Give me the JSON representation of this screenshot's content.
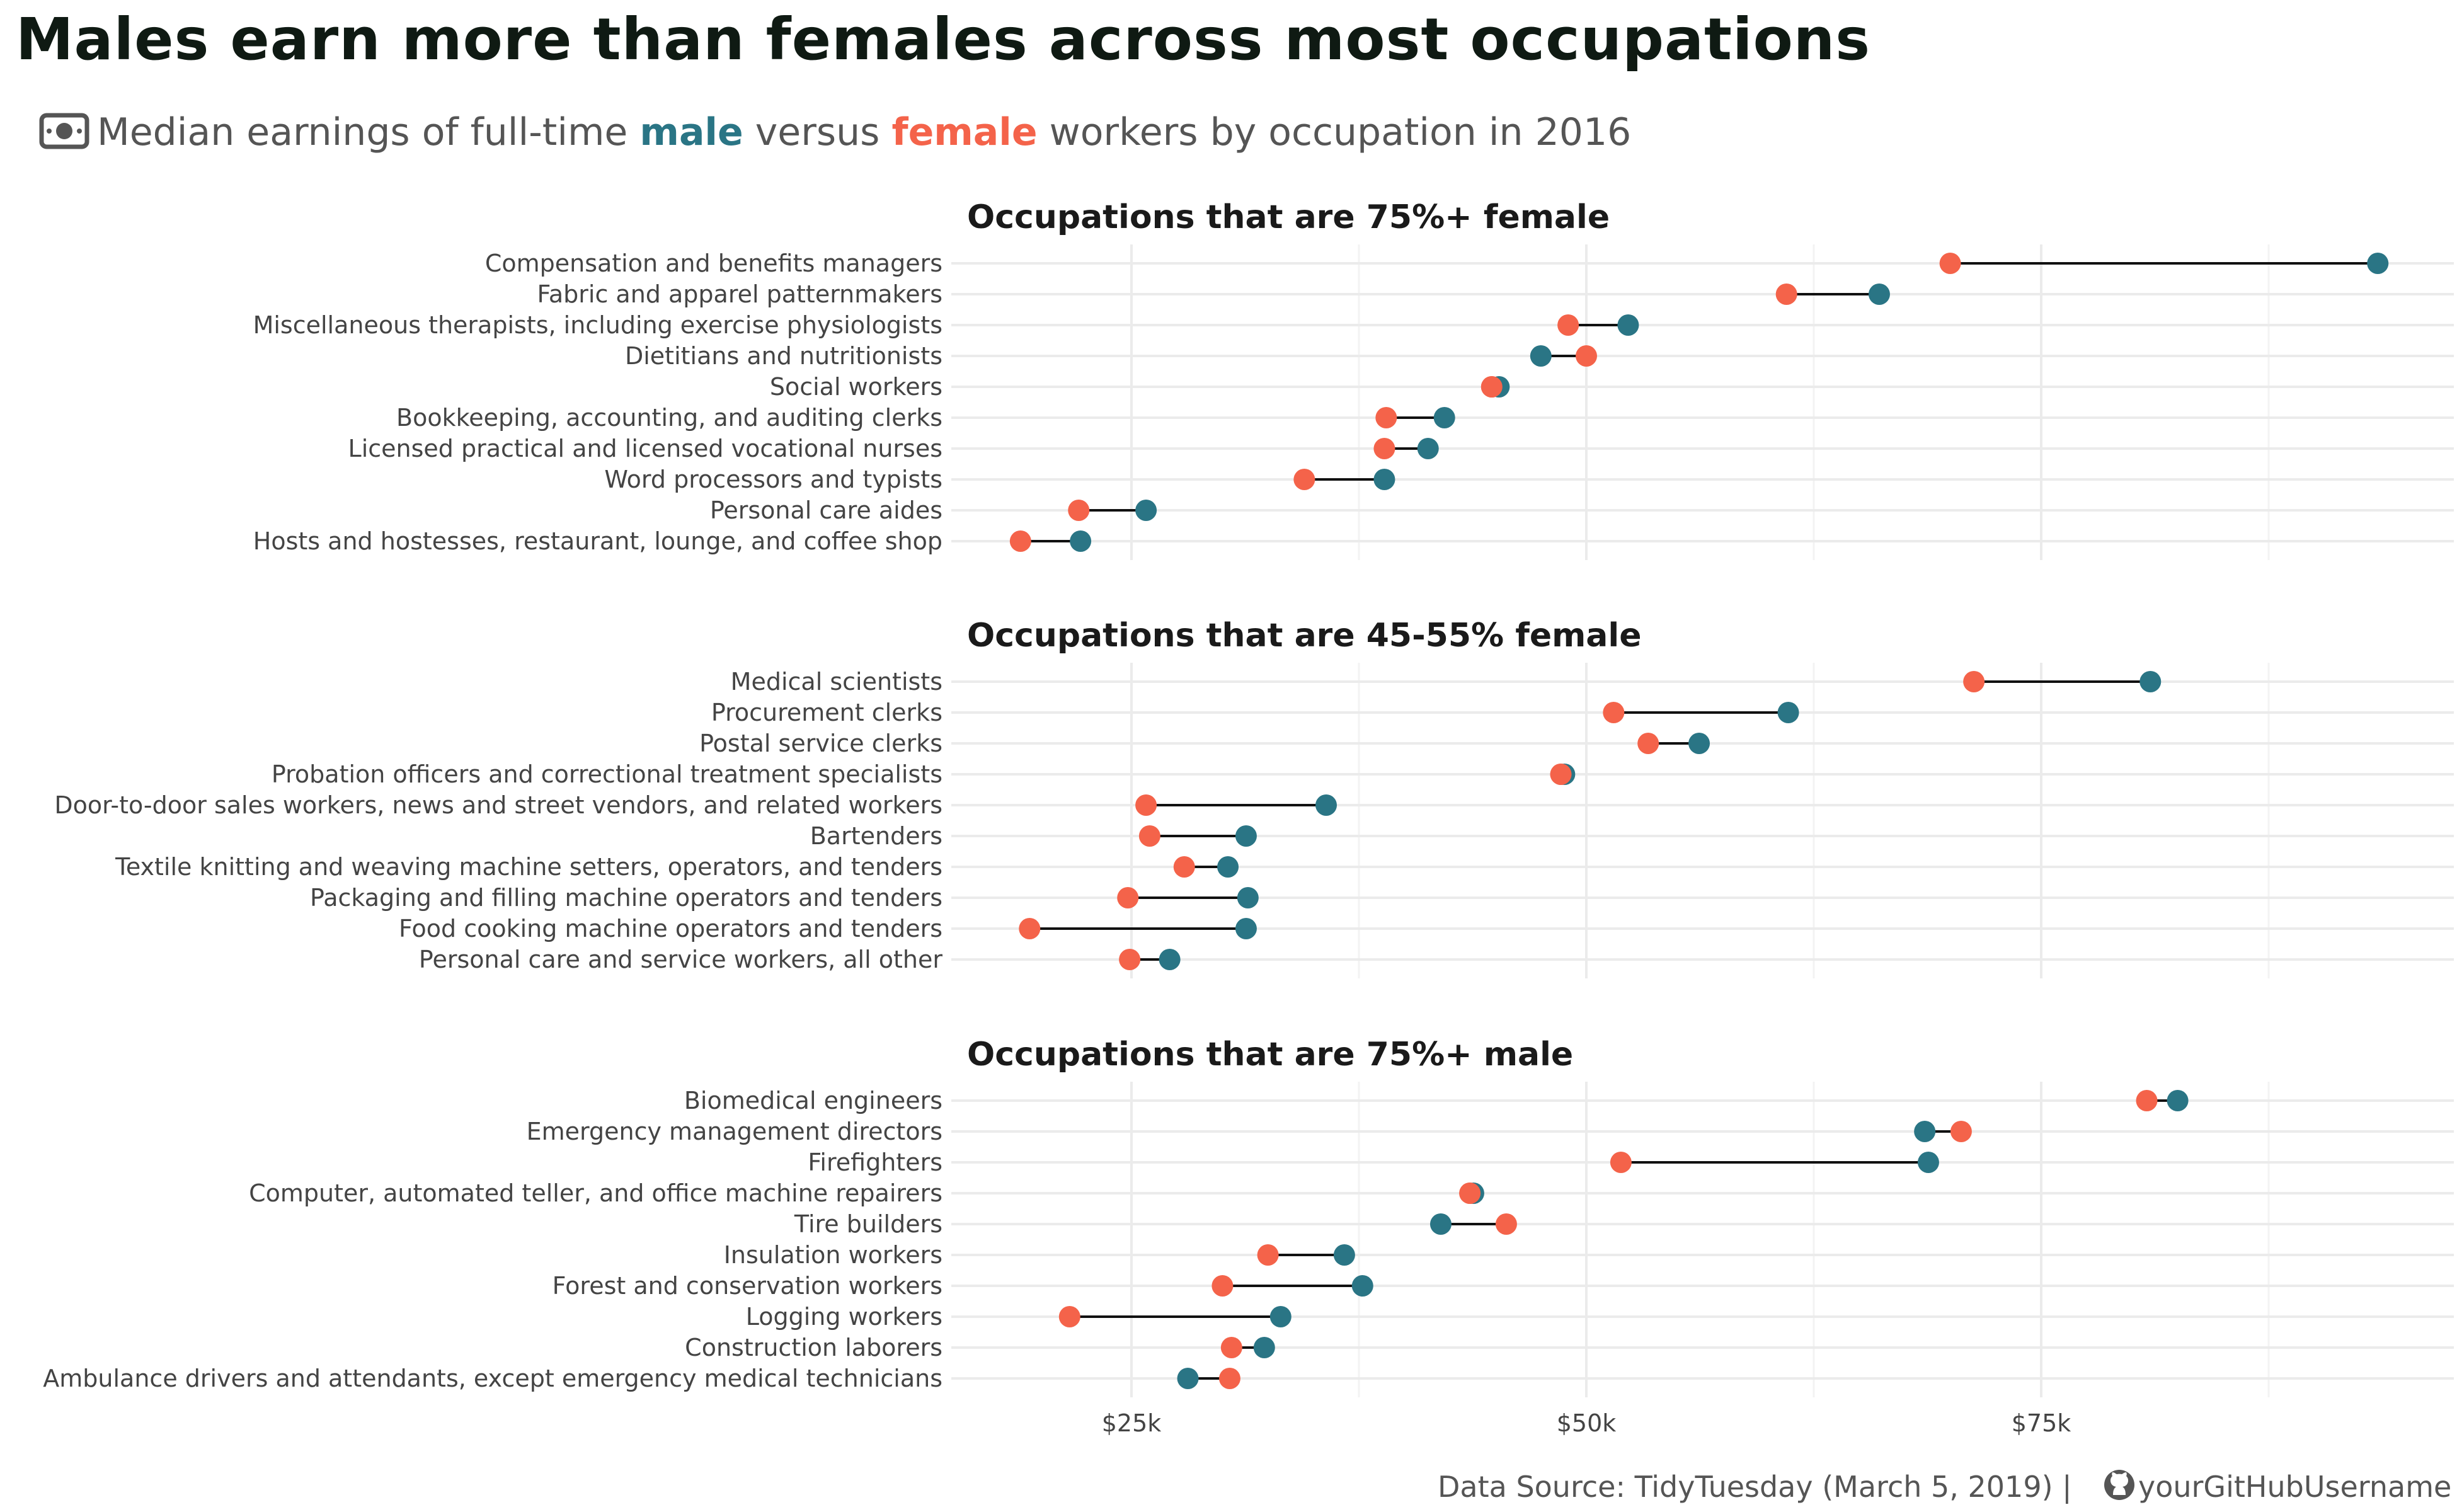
{
  "title": "Males earn more than females across most occupations",
  "subtitle": {
    "icon": "money-bill-icon",
    "prefix": "Median earnings of full-time ",
    "male": "male",
    "middle": " versus ",
    "female": "female",
    "suffix": " workers by occupation in 2016"
  },
  "caption": {
    "text": "Data Source: TidyTuesday (March 5, 2019) | ",
    "icon": "github-icon",
    "user": "yourGitHubUsername"
  },
  "colors": {
    "male": "#2a7585",
    "female": "#f4634a",
    "segment": "#111111",
    "grid": "#ebebeb",
    "title": "#0f1a13",
    "text": "#555555"
  },
  "chart_data": {
    "type": "dumbbell",
    "xlim": [
      16000,
      96000
    ],
    "x_ticks": [
      25000,
      50000,
      75000
    ],
    "x_tick_labels": [
      "$25k",
      "$50k",
      "$75k"
    ],
    "grid": true,
    "panels": [
      {
        "title": "Occupations that are 75%+ female",
        "rows": [
          {
            "occupation": "Compensation and benefits managers",
            "male": 93500,
            "female": 70000
          },
          {
            "occupation": "Fabric and apparel patternmakers",
            "male": 66100,
            "female": 61000
          },
          {
            "occupation": "Miscellaneous therapists, including exercise physiologists",
            "male": 52300,
            "female": 49000
          },
          {
            "occupation": "Dietitians and nutritionists",
            "male": 47500,
            "female": 50000
          },
          {
            "occupation": "Social workers",
            "male": 45200,
            "female": 44800
          },
          {
            "occupation": "Bookkeeping, accounting, and auditing clerks",
            "male": 42200,
            "female": 39000
          },
          {
            "occupation": "Licensed practical and licensed vocational nurses",
            "male": 41300,
            "female": 38900
          },
          {
            "occupation": "Word processors and typists",
            "male": 38900,
            "female": 34500
          },
          {
            "occupation": "Personal care aides",
            "male": 25800,
            "female": 22100
          },
          {
            "occupation": "Hosts and hostesses, restaurant, lounge, and coffee shop",
            "male": 22200,
            "female": 18900
          }
        ]
      },
      {
        "title": "Occupations that are 45-55% female",
        "rows": [
          {
            "occupation": "Medical scientists",
            "male": 81000,
            "female": 71300
          },
          {
            "occupation": "Procurement clerks",
            "male": 61100,
            "female": 51500
          },
          {
            "occupation": "Postal service clerks",
            "male": 56200,
            "female": 53400
          },
          {
            "occupation": "Probation officers and correctional treatment specialists",
            "male": 48800,
            "female": 48600
          },
          {
            "occupation": "Door-to-door sales workers, news and street vendors, and related workers",
            "male": 35700,
            "female": 25800
          },
          {
            "occupation": "Bartenders",
            "male": 31300,
            "female": 26000
          },
          {
            "occupation": "Textile knitting and weaving machine setters, operators, and tenders",
            "male": 30300,
            "female": 27900
          },
          {
            "occupation": "Packaging and filling machine operators and tenders",
            "male": 31400,
            "female": 24800
          },
          {
            "occupation": "Food cooking machine operators and tenders",
            "male": 31300,
            "female": 19400
          },
          {
            "occupation": "Personal care and service workers, all other",
            "male": 27100,
            "female": 24900
          }
        ]
      },
      {
        "title": "Occupations that are 75%+ male",
        "rows": [
          {
            "occupation": "Biomedical engineers",
            "male": 82500,
            "female": 80800
          },
          {
            "occupation": "Emergency management directors",
            "male": 68600,
            "female": 70600
          },
          {
            "occupation": "Firefighters",
            "male": 68800,
            "female": 51900
          },
          {
            "occupation": "Computer, automated teller, and office machine repairers",
            "male": 43800,
            "female": 43600
          },
          {
            "occupation": "Tire builders",
            "male": 42000,
            "female": 45600
          },
          {
            "occupation": "Insulation workers",
            "male": 36700,
            "female": 32500
          },
          {
            "occupation": "Forest and conservation workers",
            "male": 37700,
            "female": 30000
          },
          {
            "occupation": "Logging workers",
            "male": 33200,
            "female": 21600
          },
          {
            "occupation": "Construction laborers",
            "male": 32300,
            "female": 30500
          },
          {
            "occupation": "Ambulance drivers and attendants, except emergency medical technicians",
            "male": 28100,
            "female": 30400
          }
        ]
      }
    ]
  }
}
